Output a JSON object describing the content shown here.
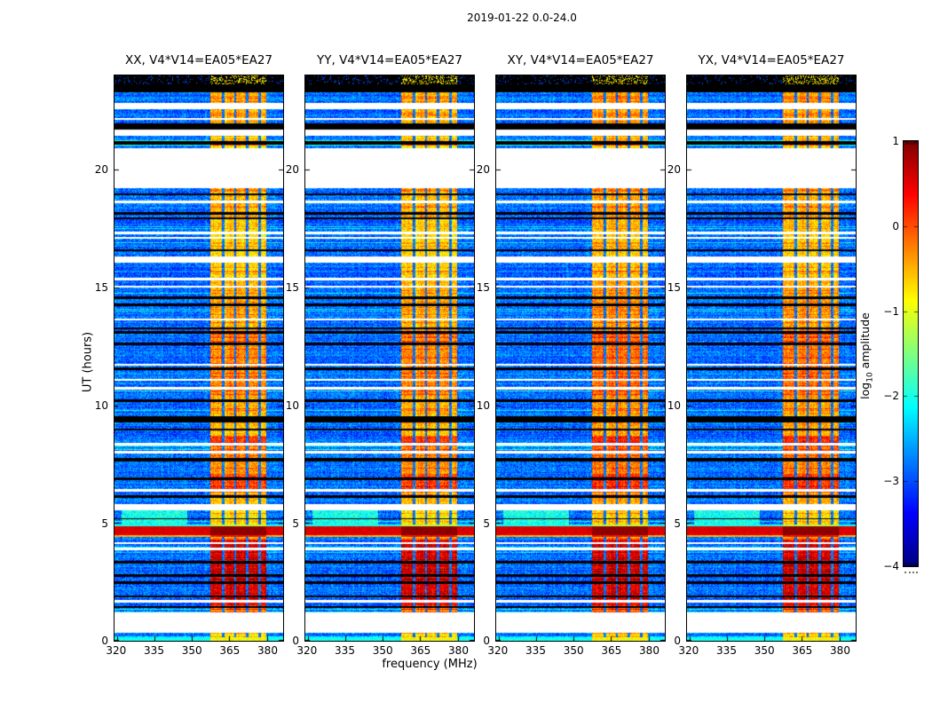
{
  "chart_data": {
    "type": "heatmap",
    "title": "2019-01-22 0.0-24.0",
    "xlabel": "frequency (MHz)",
    "ylabel": "UT (hours)",
    "panels": [
      {
        "title": "XX, V4*V14=EA05*EA27"
      },
      {
        "title": "YY, V4*V14=EA05*EA27"
      },
      {
        "title": "XY, V4*V14=EA05*EA27"
      },
      {
        "title": "YX, V4*V14=EA05*EA27"
      }
    ],
    "x_ticks": [
      320,
      335,
      350,
      365,
      380
    ],
    "x_range_mhz": [
      319.0,
      386.5
    ],
    "y_ticks": [
      0,
      5,
      10,
      15,
      20
    ],
    "y_range_hours": [
      0,
      24
    ],
    "colormap": "jet",
    "grid": false,
    "colors": {
      "background": "#ffffff",
      "frame": "#000000",
      "missing_data": "#ffffff",
      "flagged_data": "#000000"
    },
    "colorbar": {
      "label_prefix": "log",
      "label_sub": "10",
      "label_suffix": " amplitude",
      "ticks": [
        "1",
        "0",
        "−1",
        "−2",
        "−3",
        "−4"
      ],
      "tick_values": [
        1,
        0,
        -1,
        -2,
        -3,
        -4
      ],
      "range": [
        -4,
        1
      ],
      "position": "right"
    },
    "content": {
      "background_level": -2.85,
      "rfi_band_mhz": [
        357.5,
        379.8
      ],
      "band_notches_mhz": [
        362.5,
        367.3,
        372.2,
        377.0
      ],
      "band_default_level": -0.65,
      "band_profile": [
        [
          0,
          0.35,
          -0.8
        ],
        [
          1.2,
          1.5,
          -0.3
        ],
        [
          1.5,
          4.3,
          0.5
        ],
        [
          4.95,
          5.55,
          -0.75
        ],
        [
          5.8,
          6.3,
          -0.55
        ],
        [
          6.3,
          7.1,
          0.05
        ],
        [
          7.1,
          8.3,
          -0.35
        ],
        [
          8.3,
          8.7,
          0.05
        ],
        [
          8.7,
          9.3,
          -0.5
        ],
        [
          9.6,
          10.4,
          -0.45
        ],
        [
          10.4,
          13.3,
          -0.3
        ],
        [
          13.3,
          15.3,
          -0.5
        ],
        [
          15.45,
          16.05,
          -0.65
        ],
        [
          16.3,
          17.6,
          -0.7
        ],
        [
          17.6,
          19.2,
          -0.55
        ],
        [
          20.9,
          21.42,
          -0.8
        ],
        [
          22.0,
          23.5,
          -0.5
        ]
      ],
      "white_gaps_hours": [
        [
          0.35,
          1.2
        ],
        [
          1.62,
          1.72
        ],
        [
          3.84,
          3.95
        ],
        [
          4.1,
          4.2
        ],
        [
          5.55,
          5.8
        ],
        [
          7.95,
          8.05
        ],
        [
          8.28,
          8.42
        ],
        [
          11.05,
          11.12
        ],
        [
          13.6,
          13.68
        ],
        [
          15.3,
          15.42
        ],
        [
          16.05,
          16.3
        ],
        [
          17.08,
          17.16
        ],
        [
          19.2,
          20.9
        ],
        [
          21.42,
          21.72
        ],
        [
          22.1,
          22.2
        ],
        [
          22.55,
          22.83
        ]
      ],
      "black_bands_hours": [
        [
          2.7,
          2.82
        ],
        [
          6.08,
          6.18
        ],
        [
          7.62,
          7.78
        ],
        [
          9.25,
          9.55
        ],
        [
          10.15,
          10.25
        ],
        [
          11.5,
          11.6
        ],
        [
          12.55,
          12.65
        ],
        [
          13.05,
          13.15
        ],
        [
          14.2,
          14.32
        ],
        [
          16.55,
          16.63
        ],
        [
          18.1,
          18.2
        ],
        [
          18.9,
          19.0
        ],
        [
          21.08,
          21.2
        ],
        [
          21.72,
          21.95
        ],
        [
          23.3,
          23.62
        ]
      ],
      "hot_line_hours": [
        4.5,
        4.85
      ],
      "warm_line_hours": [
        4.42,
        4.5
      ],
      "cyan_line_hours": [
        4.85,
        4.95
      ],
      "intense_hours": [
        1.5,
        4.3
      ],
      "green_blob": {
        "hours": [
          4.95,
          5.6
        ],
        "mhz": [
          322,
          348
        ],
        "level": -1.9
      },
      "bottom_row_hours": [
        0,
        0.15
      ],
      "thin_blue_line_hours": [
        23.5,
        23.62
      ],
      "top_speckle_hours": [
        23.62,
        24
      ]
    }
  }
}
